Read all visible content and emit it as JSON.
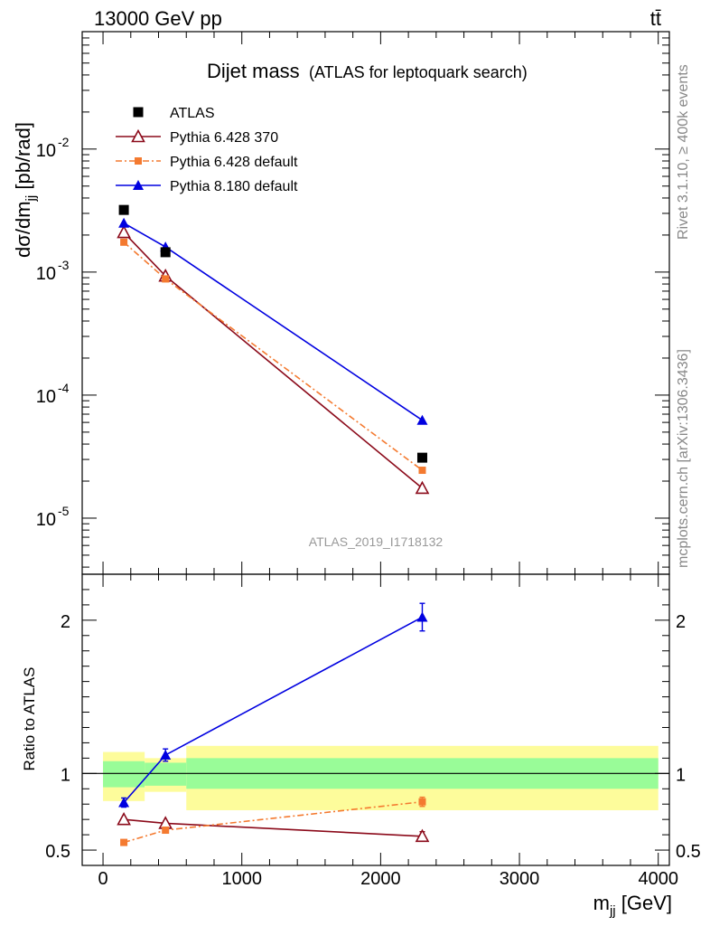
{
  "header": {
    "left": "13000 GeV pp",
    "right": "tt̄"
  },
  "side_labels": {
    "rivet": "Rivet 3.1.10, ≥ 400k events",
    "mcplots": "mcplots.cern.ch [arXiv:1306.3436]"
  },
  "watermark": "ATLAS_2019_I1718132",
  "colors": {
    "atlas": "#000000",
    "py6_370": "#8b0a1a",
    "py6_default": "#f47a30",
    "py8": "#0000e0",
    "band_inner": "#99fc98",
    "band_outer": "#fdfc9b"
  },
  "chart_data": [
    {
      "type": "line",
      "title": "Dijet mass",
      "subtitle": "(ATLAS for leptoquark search)",
      "ylabel": "dσ/dm_jj [pb/rad]",
      "ylabel_main": "dσ/dm",
      "ylabel_sub": "jj",
      "ylabel_unit": " [pb/rad]",
      "yscale": "log",
      "ylim": [
        3.5e-06,
        0.09
      ],
      "xlim": [
        -150,
        4080
      ],
      "ytick_labels": [
        {
          "base": "10",
          "exp": "-2",
          "value": 0.01
        },
        {
          "base": "10",
          "exp": "-3",
          "value": 0.001
        },
        {
          "base": "10",
          "exp": "-4",
          "value": 0.0001
        },
        {
          "base": "10",
          "exp": "-5",
          "value": 1e-05
        }
      ],
      "legend_position": "top-left",
      "series": [
        {
          "name": "ATLAS",
          "marker": "square",
          "color": "#000000",
          "x": [
            150,
            450,
            2300
          ],
          "y": [
            0.0032,
            0.00145,
            3.1e-05
          ]
        },
        {
          "name": "Pythia 6.428 370",
          "marker": "open-triangle",
          "color": "#8b0a1a",
          "x": [
            150,
            450,
            2300
          ],
          "y": [
            0.0021,
            0.00093,
            1.75e-05
          ]
        },
        {
          "name": "Pythia 6.428 default",
          "marker": "small-square",
          "color": "#f47a30",
          "dash": true,
          "x": [
            150,
            450,
            2300
          ],
          "y": [
            0.00175,
            0.00088,
            2.45e-05
          ]
        },
        {
          "name": "Pythia 8.180 default",
          "marker": "triangle",
          "color": "#0000e0",
          "x": [
            150,
            450,
            2300
          ],
          "y": [
            0.0025,
            0.0016,
            6.25e-05
          ]
        }
      ]
    },
    {
      "type": "line",
      "ylabel": "Ratio to ATLAS",
      "xlabel_main": "m",
      "xlabel_sub": "jj",
      "xlabel_unit": " [GeV]",
      "xlim": [
        -150,
        4080
      ],
      "ylim": [
        0.4,
        2.3
      ],
      "xticks": [
        0,
        1000,
        2000,
        3000,
        4000
      ],
      "xtick_labels": [
        "0",
        "1000",
        "2000",
        "3000",
        "4000"
      ],
      "yticks": [
        0.5,
        1,
        2
      ],
      "ytick_labels": [
        "0.5",
        "1",
        "2"
      ],
      "bands": [
        {
          "x0": 0,
          "x1": 300,
          "inner": [
            0.91,
            1.08
          ],
          "outer": [
            0.82,
            1.14
          ]
        },
        {
          "x0": 300,
          "x1": 600,
          "inner": [
            0.92,
            1.07
          ],
          "outer": [
            0.88,
            1.1
          ]
        },
        {
          "x0": 600,
          "x1": 4000,
          "inner": [
            0.9,
            1.1
          ],
          "outer": [
            0.76,
            1.18
          ]
        }
      ],
      "series": [
        {
          "name": "Pythia 6.428 370",
          "marker": "open-triangle",
          "color": "#8b0a1a",
          "x": [
            150,
            450,
            2300
          ],
          "y": [
            0.7,
            0.675,
            0.59
          ],
          "err": [
            0.01,
            0.012,
            0.03
          ]
        },
        {
          "name": "Pythia 6.428 default",
          "marker": "small-square",
          "color": "#f47a30",
          "dash": true,
          "x": [
            150,
            450,
            2300
          ],
          "y": [
            0.55,
            0.63,
            0.815
          ],
          "err": [
            0.01,
            0.012,
            0.03
          ]
        },
        {
          "name": "Pythia 8.180 default",
          "marker": "triangle",
          "color": "#0000e0",
          "x": [
            150,
            450,
            2300
          ],
          "y": [
            0.81,
            1.12,
            2.02
          ],
          "err": [
            0.03,
            0.04,
            0.09
          ]
        }
      ]
    }
  ]
}
